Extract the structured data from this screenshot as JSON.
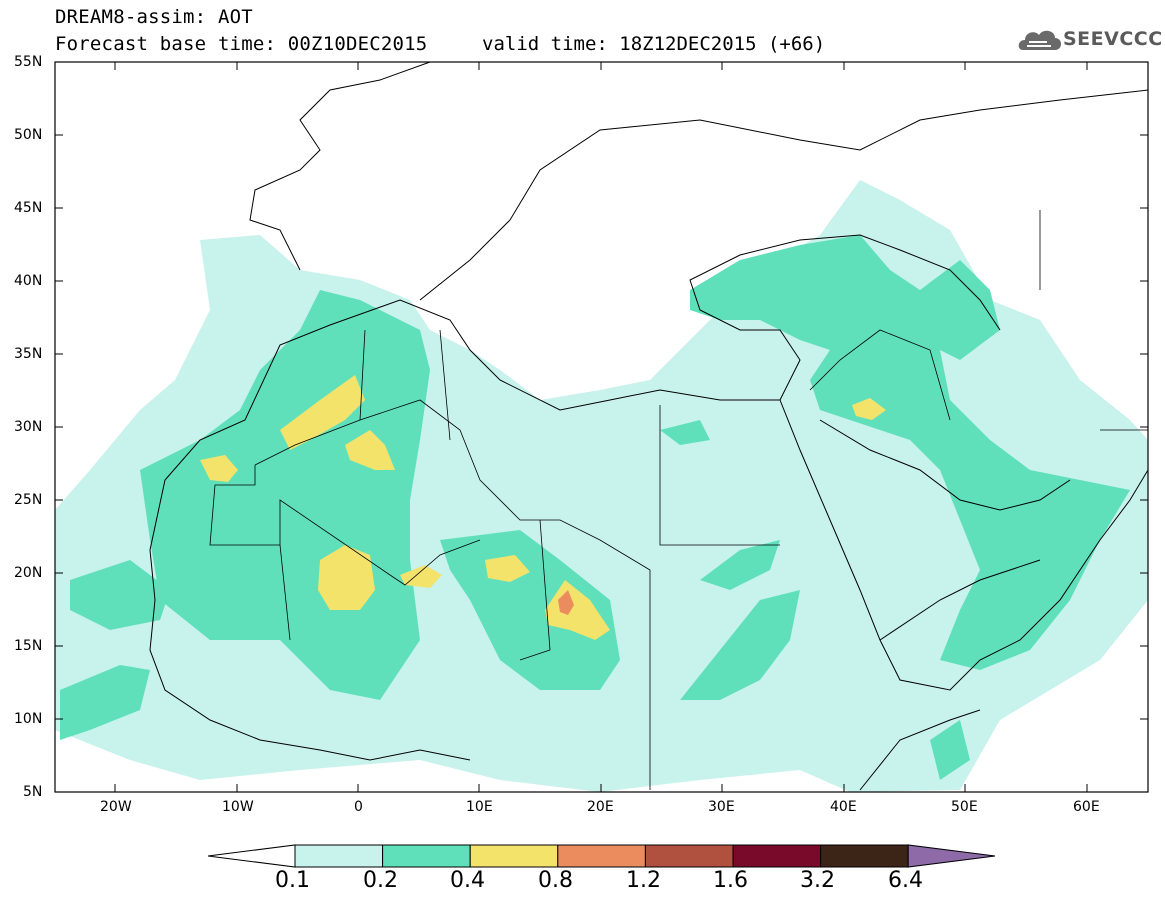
{
  "title": {
    "line1": "DREAM8-assim: AOT",
    "base": "Forecast base time: 00Z10DEC2015",
    "valid": "valid time: 18Z12DEC2015 (+66)"
  },
  "logo": {
    "text": "SEEVCCC",
    "icon": "cloud-icon"
  },
  "map": {
    "lat_labels": [
      "55N",
      "50N",
      "45N",
      "40N",
      "35N",
      "30N",
      "25N",
      "20N",
      "15N",
      "10N",
      "5N"
    ],
    "lon_labels": [
      "20W",
      "10W",
      "0",
      "10E",
      "20E",
      "30E",
      "40E",
      "50E",
      "60E"
    ]
  },
  "colorbar": {
    "labels": [
      "0.1",
      "0.2",
      "0.4",
      "0.8",
      "1.2",
      "1.6",
      "3.2",
      "6.4"
    ],
    "colors": [
      "#c8f2ec",
      "#5fe0bb",
      "#f4e36a",
      "#eb8c5f",
      "#b0503f",
      "#7a0a2a",
      "#3c2416",
      "#8e6aa8"
    ]
  }
}
